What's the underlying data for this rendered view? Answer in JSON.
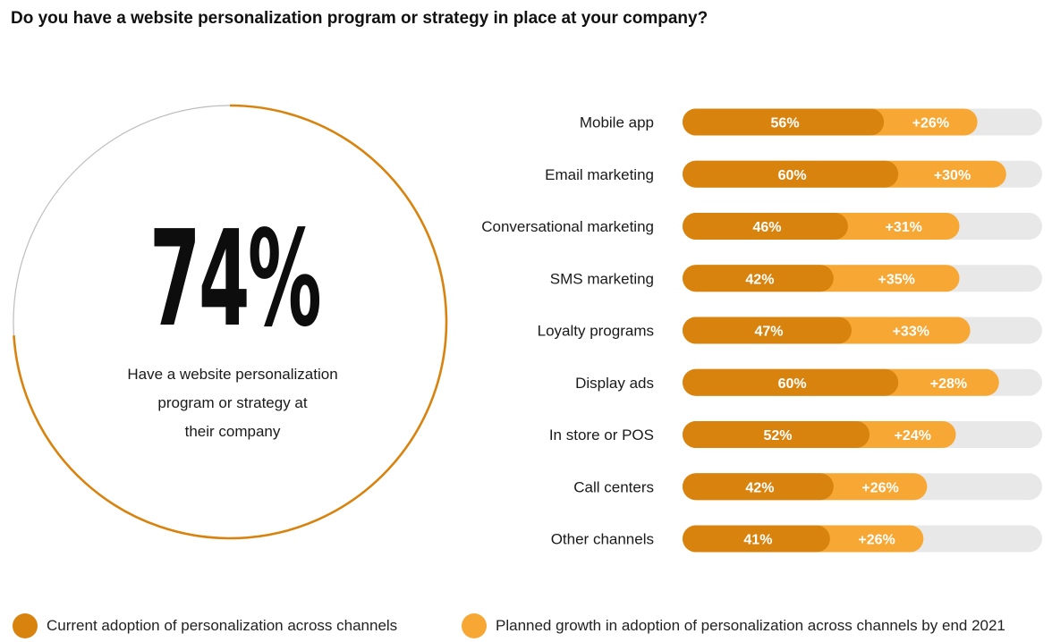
{
  "title": "Do you have a website personalization program or strategy in place at your company?",
  "headline": {
    "value": "74%",
    "fraction": 0.74,
    "caption_lines": [
      "Have a website personalization",
      "program or strategy at",
      "their company"
    ]
  },
  "colors": {
    "current": "#D9830F",
    "planned": "#F7A733",
    "track": "#E8E8E8",
    "ring_fill": "#D9830F",
    "ring_rest": "#BDBDBD"
  },
  "legend": {
    "current": "Current adoption of personalization across channels",
    "planned": "Planned growth in adoption of personalization across channels by end 2021"
  },
  "chart_data": {
    "type": "bar",
    "orientation": "horizontal",
    "stacked": true,
    "xlim": [
      0,
      100
    ],
    "categories": [
      "Mobile app",
      "Email marketing",
      "Conversational marketing",
      "SMS marketing",
      "Loyalty programs",
      "Display ads",
      "In store or POS",
      "Call centers",
      "Other channels"
    ],
    "series": [
      {
        "name": "Current adoption of personalization across channels",
        "values": [
          56,
          60,
          46,
          42,
          47,
          60,
          52,
          42,
          41
        ],
        "labels": [
          "56%",
          "60%",
          "46%",
          "42%",
          "47%",
          "60%",
          "52%",
          "42%",
          "41%"
        ]
      },
      {
        "name": "Planned growth in adoption of personalization across channels by end 2021",
        "values": [
          26,
          30,
          31,
          35,
          33,
          28,
          24,
          26,
          26
        ],
        "labels": [
          "+26%",
          "+30%",
          "+31%",
          "+35%",
          "+33%",
          "+28%",
          "+24%",
          "+26%",
          "+26%"
        ]
      }
    ],
    "legend_position": "bottom"
  }
}
